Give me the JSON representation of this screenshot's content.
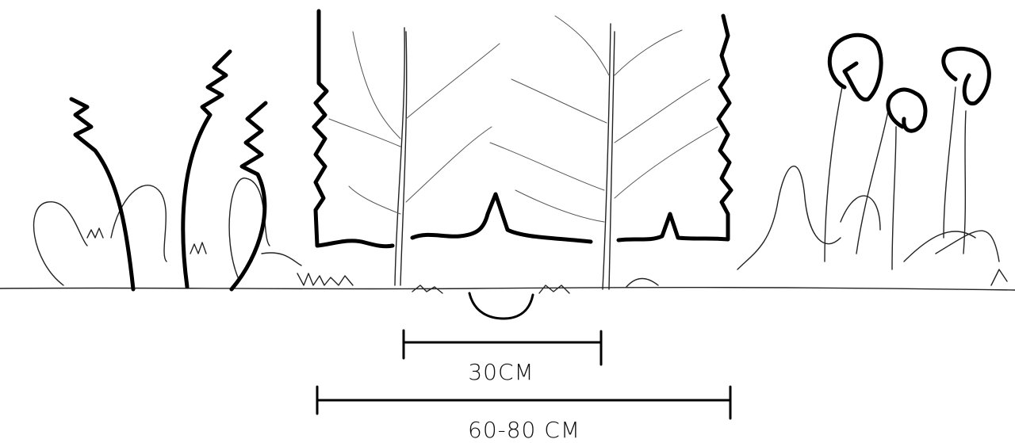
{
  "dimensions": [
    {
      "label": "30CM"
    },
    {
      "label": "60-80 CM"
    }
  ]
}
